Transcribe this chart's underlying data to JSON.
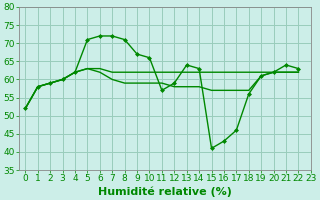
{
  "title": "",
  "xlabel": "Humidité relative (%)",
  "ylabel": "",
  "background_color": "#cceee8",
  "grid_color": "#99ccbb",
  "line_color": "#008800",
  "xlim": [
    -0.5,
    23
  ],
  "ylim": [
    35,
    80
  ],
  "yticks": [
    35,
    40,
    45,
    50,
    55,
    60,
    65,
    70,
    75,
    80
  ],
  "xticks": [
    0,
    1,
    2,
    3,
    4,
    5,
    6,
    7,
    8,
    9,
    10,
    11,
    12,
    13,
    14,
    15,
    16,
    17,
    18,
    19,
    20,
    21,
    22,
    23
  ],
  "series_marker": [
    52,
    58,
    59,
    60,
    62,
    71,
    72,
    72,
    71,
    67,
    66,
    57,
    59,
    64,
    63,
    41,
    43,
    46,
    56,
    61,
    62,
    64,
    63
  ],
  "series_flat1": [
    52,
    58,
    59,
    60,
    62,
    63,
    63,
    62,
    62,
    62,
    62,
    62,
    62,
    62,
    62,
    62,
    62,
    62,
    62,
    62,
    62,
    62,
    62
  ],
  "series_flat2": [
    52,
    58,
    59,
    60,
    62,
    63,
    62,
    60,
    59,
    59,
    59,
    59,
    58,
    58,
    58,
    57,
    57,
    57,
    57,
    61,
    62,
    62,
    62
  ],
  "xlabel_fontsize": 8,
  "tick_fontsize": 6.5
}
